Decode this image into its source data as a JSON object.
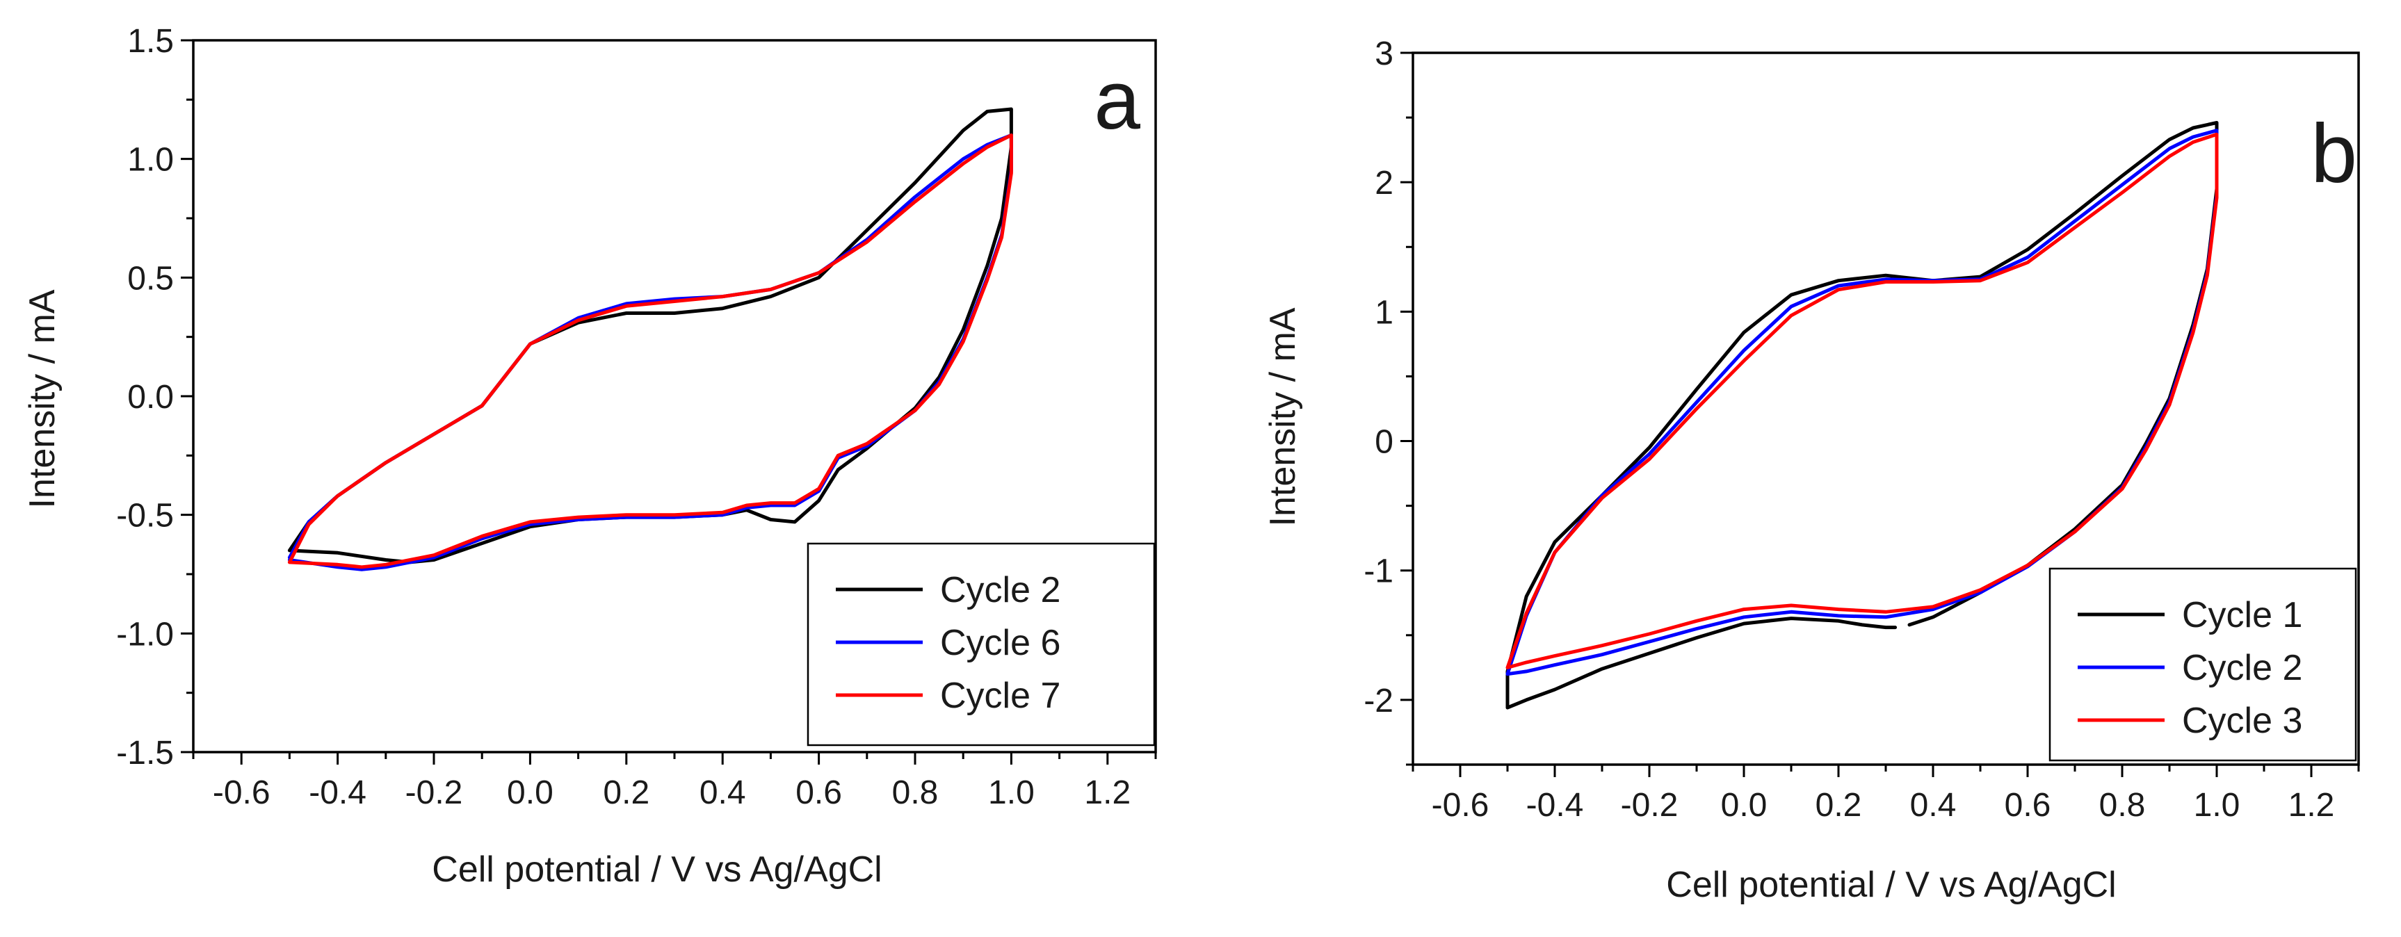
{
  "chart_data": [
    {
      "type": "line",
      "panel_label": "a",
      "xlabel": "Cell potential / V vs Ag/AgCl",
      "ylabel": "Intensity / mA",
      "xlim": [
        -0.7,
        1.3
      ],
      "ylim": [
        -1.5,
        1.5
      ],
      "xticks": [
        -0.6,
        -0.4,
        -0.2,
        0.0,
        0.2,
        0.4,
        0.6,
        0.8,
        1.0,
        1.2
      ],
      "xtick_labels": [
        "-0.6",
        "-0.4",
        "-0.2",
        "0.0",
        "0.2",
        "0.4",
        "0.6",
        "0.8",
        "1.0",
        "1.2"
      ],
      "yticks": [
        -1.5,
        -1.0,
        -0.5,
        0.0,
        0.5,
        1.0,
        1.5
      ],
      "ytick_labels": [
        "-1.5",
        "-1.0",
        "-0.5",
        "0.0",
        "0.5",
        "1.0",
        "1.5"
      ],
      "legend_position": "bottom-right",
      "series": [
        {
          "name": "Cycle 2",
          "color": "#000000",
          "x": [
            -0.5,
            -0.46,
            -0.4,
            -0.3,
            -0.2,
            -0.1,
            0.0,
            0.1,
            0.2,
            0.3,
            0.4,
            0.5,
            0.6,
            0.7,
            0.8,
            0.9,
            0.95,
            1.0,
            1.0,
            0.98,
            0.95,
            0.9,
            0.85,
            0.8,
            0.7,
            0.64,
            0.6,
            0.55,
            0.5,
            0.45,
            0.4,
            0.3,
            0.2,
            0.1,
            0.0,
            -0.1,
            -0.2,
            -0.25,
            -0.3,
            -0.4,
            -0.5,
            -0.5
          ],
          "y": [
            -0.65,
            -0.53,
            -0.42,
            -0.28,
            -0.16,
            -0.04,
            0.22,
            0.31,
            0.35,
            0.35,
            0.37,
            0.42,
            0.5,
            0.7,
            0.9,
            1.12,
            1.2,
            1.21,
            1.05,
            0.75,
            0.55,
            0.28,
            0.08,
            -0.05,
            -0.22,
            -0.31,
            -0.44,
            -0.53,
            -0.52,
            -0.48,
            -0.5,
            -0.51,
            -0.51,
            -0.52,
            -0.55,
            -0.62,
            -0.69,
            -0.7,
            -0.69,
            -0.66,
            -0.65,
            -0.65
          ]
        },
        {
          "name": "Cycle 6",
          "color": "#0000ff",
          "x": [
            -0.5,
            -0.46,
            -0.4,
            -0.3,
            -0.2,
            -0.1,
            0.0,
            0.1,
            0.2,
            0.3,
            0.4,
            0.5,
            0.6,
            0.7,
            0.8,
            0.9,
            0.95,
            1.0,
            1.0,
            0.98,
            0.95,
            0.9,
            0.85,
            0.8,
            0.7,
            0.64,
            0.6,
            0.55,
            0.5,
            0.45,
            0.4,
            0.3,
            0.2,
            0.1,
            0.0,
            -0.1,
            -0.2,
            -0.3,
            -0.35,
            -0.4,
            -0.5
          ],
          "y": [
            -0.68,
            -0.53,
            -0.42,
            -0.28,
            -0.16,
            -0.04,
            0.22,
            0.33,
            0.39,
            0.41,
            0.42,
            0.45,
            0.52,
            0.66,
            0.84,
            1.0,
            1.06,
            1.1,
            0.95,
            0.68,
            0.5,
            0.24,
            0.06,
            -0.06,
            -0.21,
            -0.26,
            -0.4,
            -0.46,
            -0.46,
            -0.47,
            -0.5,
            -0.51,
            -0.51,
            -0.52,
            -0.54,
            -0.6,
            -0.68,
            -0.72,
            -0.73,
            -0.72,
            -0.69
          ]
        },
        {
          "name": "Cycle 7",
          "color": "#ff0000",
          "x": [
            -0.5,
            -0.46,
            -0.4,
            -0.3,
            -0.2,
            -0.1,
            0.0,
            0.1,
            0.2,
            0.3,
            0.4,
            0.5,
            0.6,
            0.7,
            0.8,
            0.9,
            0.95,
            1.0,
            1.0,
            0.98,
            0.95,
            0.9,
            0.85,
            0.8,
            0.7,
            0.64,
            0.6,
            0.55,
            0.5,
            0.45,
            0.4,
            0.3,
            0.2,
            0.1,
            0.0,
            -0.1,
            -0.2,
            -0.3,
            -0.35,
            -0.4,
            -0.5
          ],
          "y": [
            -0.7,
            -0.54,
            -0.42,
            -0.28,
            -0.16,
            -0.04,
            0.22,
            0.32,
            0.38,
            0.4,
            0.42,
            0.45,
            0.52,
            0.65,
            0.82,
            0.98,
            1.05,
            1.1,
            0.94,
            0.67,
            0.49,
            0.23,
            0.05,
            -0.06,
            -0.2,
            -0.25,
            -0.39,
            -0.45,
            -0.45,
            -0.46,
            -0.49,
            -0.5,
            -0.5,
            -0.51,
            -0.53,
            -0.59,
            -0.67,
            -0.71,
            -0.72,
            -0.71,
            -0.7
          ]
        }
      ]
    },
    {
      "type": "line",
      "panel_label": "b",
      "xlabel": "Cell potential / V vs Ag/AgCl",
      "ylabel": "Intensity / mA",
      "xlim": [
        -0.7,
        1.3
      ],
      "ylim": [
        -2.5,
        3.0
      ],
      "xticks": [
        -0.6,
        -0.4,
        -0.2,
        0.0,
        0.2,
        0.4,
        0.6,
        0.8,
        1.0,
        1.2
      ],
      "xtick_labels": [
        "-0.6",
        "-0.4",
        "-0.2",
        "0.0",
        "0.2",
        "0.4",
        "0.6",
        "0.8",
        "1.0",
        "1.2"
      ],
      "yticks": [
        -2,
        -1,
        0,
        1,
        2,
        3
      ],
      "ytick_labels": [
        "-2",
        "-1",
        "0",
        "1",
        "2",
        "3"
      ],
      "legend_position": "bottom-right",
      "series": [
        {
          "name": "Cycle 1",
          "color": "#000000",
          "x": [
            0.32,
            0.3,
            0.25,
            0.2,
            0.1,
            0.0,
            -0.1,
            -0.2,
            -0.3,
            -0.4,
            -0.46,
            -0.5,
            -0.5,
            -0.46,
            -0.4,
            -0.3,
            -0.2,
            -0.1,
            0.0,
            0.1,
            0.2,
            0.3,
            0.4,
            0.5,
            0.6,
            0.7,
            0.8,
            0.9,
            0.95,
            1.0,
            1.0,
            0.98,
            0.95,
            0.9,
            0.85,
            0.8,
            0.7,
            0.6,
            0.5,
            0.4,
            0.35
          ],
          "y": [
            -1.44,
            -1.44,
            -1.42,
            -1.39,
            -1.37,
            -1.41,
            -1.52,
            -1.64,
            -1.76,
            -1.92,
            -2.0,
            -2.06,
            -1.78,
            -1.2,
            -0.78,
            -0.42,
            -0.05,
            0.4,
            0.84,
            1.13,
            1.24,
            1.28,
            1.24,
            1.27,
            1.48,
            1.76,
            2.05,
            2.33,
            2.42,
            2.46,
            1.95,
            1.33,
            0.9,
            0.33,
            -0.02,
            -0.34,
            -0.68,
            -0.96,
            -1.17,
            -1.36,
            -1.42
          ]
        },
        {
          "name": "Cycle 2",
          "color": "#0000ff",
          "x": [
            -0.5,
            -0.46,
            -0.4,
            -0.3,
            -0.2,
            -0.1,
            0.0,
            0.1,
            0.2,
            0.3,
            0.4,
            0.5,
            0.6,
            0.7,
            0.8,
            0.9,
            0.95,
            1.0,
            1.0,
            0.98,
            0.95,
            0.9,
            0.85,
            0.8,
            0.7,
            0.6,
            0.5,
            0.4,
            0.3,
            0.2,
            0.1,
            0.0,
            -0.1,
            -0.2,
            -0.3,
            -0.4,
            -0.46,
            -0.5
          ],
          "y": [
            -1.8,
            -1.35,
            -0.86,
            -0.42,
            -0.1,
            0.3,
            0.7,
            1.04,
            1.2,
            1.25,
            1.24,
            1.25,
            1.42,
            1.7,
            1.98,
            2.26,
            2.35,
            2.4,
            1.9,
            1.3,
            0.86,
            0.3,
            -0.05,
            -0.36,
            -0.7,
            -0.97,
            -1.17,
            -1.3,
            -1.36,
            -1.35,
            -1.32,
            -1.36,
            -1.45,
            -1.55,
            -1.65,
            -1.73,
            -1.78,
            -1.8
          ]
        },
        {
          "name": "Cycle 3",
          "color": "#ff0000",
          "x": [
            -0.5,
            -0.46,
            -0.4,
            -0.3,
            -0.2,
            -0.1,
            0.0,
            0.1,
            0.2,
            0.3,
            0.4,
            0.5,
            0.6,
            0.7,
            0.8,
            0.9,
            0.95,
            1.0,
            1.0,
            0.98,
            0.95,
            0.9,
            0.85,
            0.8,
            0.7,
            0.6,
            0.5,
            0.4,
            0.3,
            0.2,
            0.1,
            0.0,
            -0.1,
            -0.2,
            -0.3,
            -0.4,
            -0.46,
            -0.5
          ],
          "y": [
            -1.75,
            -1.33,
            -0.86,
            -0.44,
            -0.14,
            0.25,
            0.62,
            0.97,
            1.17,
            1.23,
            1.23,
            1.24,
            1.38,
            1.65,
            1.92,
            2.2,
            2.31,
            2.37,
            1.88,
            1.28,
            0.84,
            0.28,
            -0.07,
            -0.37,
            -0.7,
            -0.96,
            -1.15,
            -1.28,
            -1.32,
            -1.3,
            -1.27,
            -1.3,
            -1.39,
            -1.49,
            -1.58,
            -1.66,
            -1.71,
            -1.75
          ]
        }
      ]
    }
  ]
}
